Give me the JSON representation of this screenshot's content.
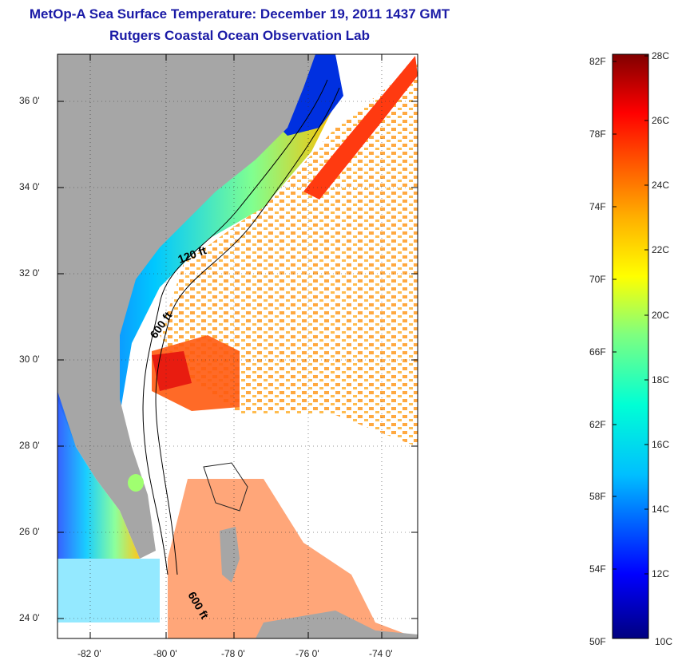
{
  "header": {
    "title": "MetOp-A Sea Surface Temperature:  December 19, 2011 1437 GMT",
    "subtitle": "Rutgers Coastal Ocean Observation Lab"
  },
  "map": {
    "lat_labels": [
      "36 0'",
      "34 0'",
      "32 0'",
      "30 0'",
      "28 0'",
      "26 0'",
      "24 0'"
    ],
    "lon_labels": [
      "-82 0'",
      "-80 0'",
      "-78 0'",
      "-76 0'",
      "-74 0'"
    ],
    "contour_labels": [
      "120 ft",
      "600 ft",
      "600 ft"
    ],
    "land_color": "#a6a6a6"
  },
  "colorbar": {
    "fahrenheit_labels": [
      "82F",
      "78F",
      "74F",
      "70F",
      "66F",
      "62F",
      "58F",
      "54F",
      "50F"
    ],
    "celsius_labels": [
      "28C",
      "26C",
      "24C",
      "22C",
      "20C",
      "18C",
      "16C",
      "14C",
      "12C",
      "10C"
    ],
    "colors": [
      "#000080",
      "#0000ff",
      "#00bfff",
      "#00ffd5",
      "#7fff7f",
      "#ffff00",
      "#ffb000",
      "#ff5000",
      "#ff0000",
      "#800000"
    ]
  }
}
